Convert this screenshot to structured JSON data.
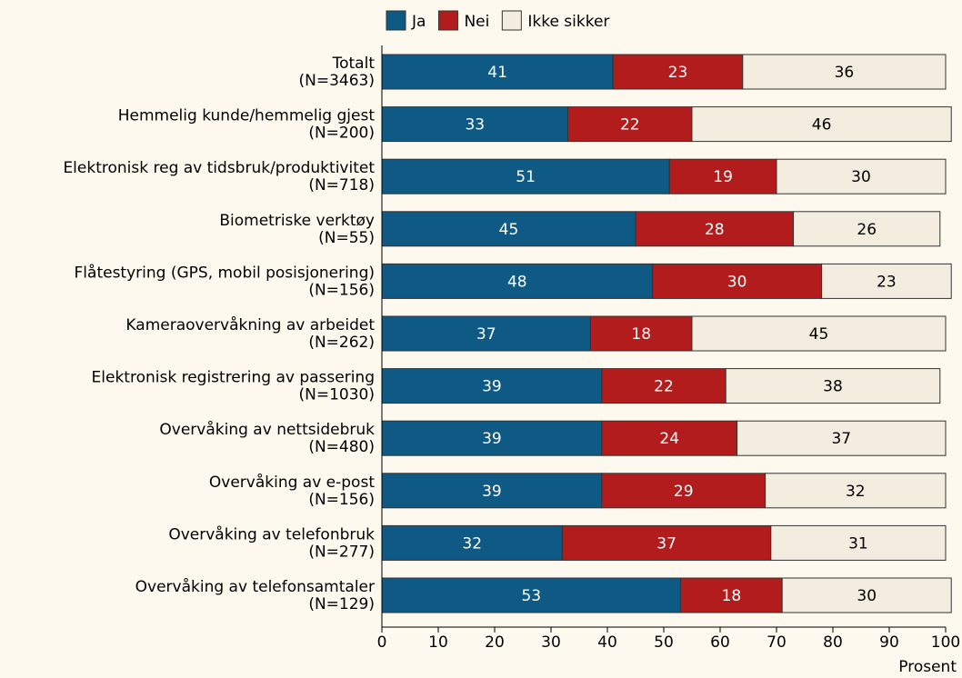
{
  "chart_data": {
    "type": "stacked-barh",
    "categories": [
      [
        "Totalt",
        "(N=3463)"
      ],
      [
        "Hemmelig kunde/hemmelig gjest",
        "(N=200)"
      ],
      [
        "Elektronisk reg av tidsbruk/produktivitet",
        "(N=718)"
      ],
      [
        "Biometriske verktøy",
        "(N=55)"
      ],
      [
        "Flåtestyring (GPS, mobil posisjonering)",
        "(N=156)"
      ],
      [
        "Kameraovervåkning av arbeidet",
        "(N=262)"
      ],
      [
        "Elektronisk registrering av passering",
        "(N=1030)"
      ],
      [
        "Overvåking av nettsidebruk",
        "(N=480)"
      ],
      [
        "Overvåking av e-post",
        "(N=156)"
      ],
      [
        "Overvåking av telefonbruk",
        "(N=277)"
      ],
      [
        "Overvåking av telefonsamtaler",
        "(N=129)"
      ]
    ],
    "series": [
      {
        "name": "Ja",
        "color": "#0e5a84",
        "values": [
          41,
          33,
          51,
          45,
          48,
          37,
          39,
          39,
          39,
          32,
          53
        ]
      },
      {
        "name": "Nei",
        "color": "#b31c1c",
        "values": [
          23,
          22,
          19,
          28,
          30,
          18,
          22,
          24,
          29,
          37,
          18
        ]
      },
      {
        "name": "Ikke sikker",
        "color": "#f3ede0",
        "values": [
          36,
          46,
          30,
          26,
          23,
          45,
          38,
          37,
          32,
          31,
          30
        ]
      }
    ],
    "xlim": [
      0,
      100
    ],
    "xticks": [
      0,
      10,
      20,
      30,
      40,
      50,
      60,
      70,
      80,
      90,
      100
    ],
    "xlabel": "Prosent"
  }
}
